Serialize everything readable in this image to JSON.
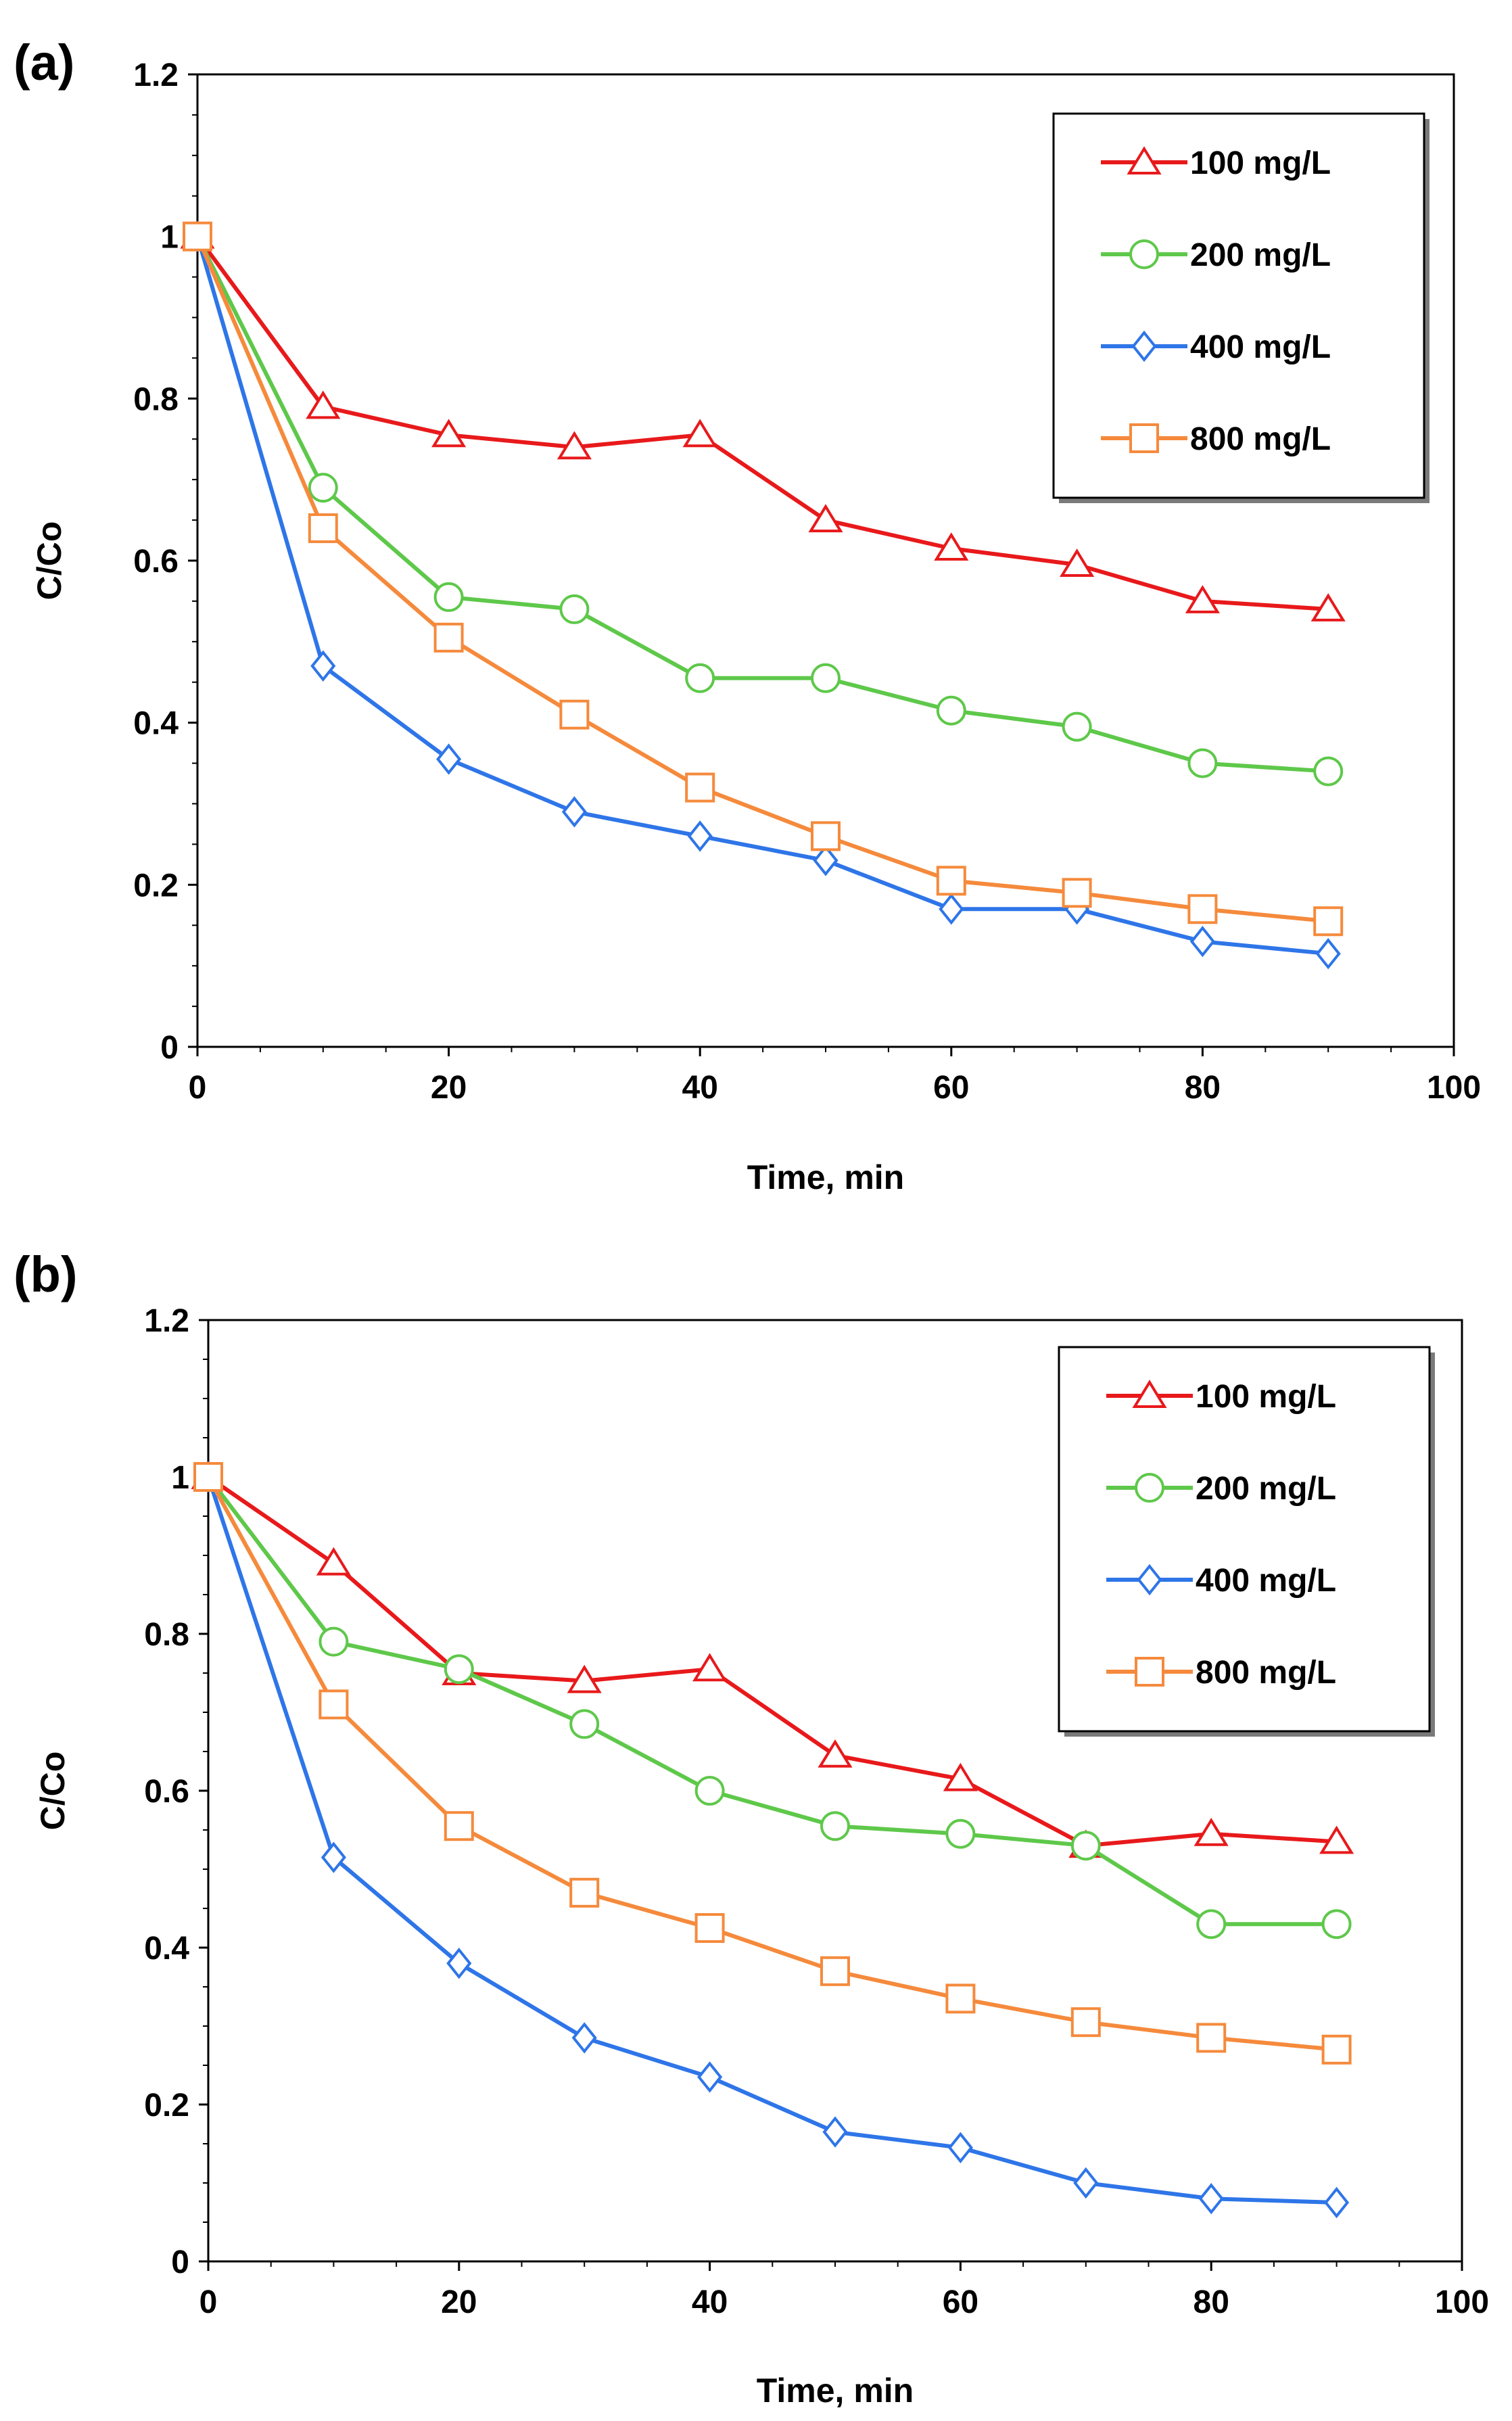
{
  "chart_data": [
    {
      "panel_label": "(a)",
      "type": "line",
      "xlabel": "Time, min",
      "ylabel": "C/Co",
      "xlim": [
        0,
        100
      ],
      "ylim": [
        0,
        1.2
      ],
      "xticks": [
        "0",
        "20",
        "40",
        "60",
        "80",
        "100"
      ],
      "yticks": [
        "0",
        "0.2",
        "0.4",
        "0.6",
        "0.8",
        "1",
        "1.2"
      ],
      "grid": false,
      "legend_position": "top-right",
      "x": [
        0,
        10,
        20,
        30,
        40,
        50,
        60,
        70,
        80,
        90
      ],
      "series": [
        {
          "name": "100 mg/L",
          "color": "#e8191b",
          "marker": "triangle",
          "values": [
            1.0,
            0.79,
            0.755,
            0.74,
            0.755,
            0.65,
            0.615,
            0.595,
            0.55,
            0.54
          ]
        },
        {
          "name": "200 mg/L",
          "color": "#5ec84a",
          "marker": "circle",
          "values": [
            1.0,
            0.69,
            0.555,
            0.54,
            0.455,
            0.455,
            0.415,
            0.395,
            0.35,
            0.34
          ]
        },
        {
          "name": "400 mg/L",
          "color": "#2e75e8",
          "marker": "diamond",
          "values": [
            1.0,
            0.47,
            0.355,
            0.29,
            0.26,
            0.23,
            0.17,
            0.17,
            0.13,
            0.115
          ]
        },
        {
          "name": "800 mg/L",
          "color": "#f58a3c",
          "marker": "square",
          "values": [
            1.0,
            0.64,
            0.505,
            0.41,
            0.32,
            0.26,
            0.205,
            0.19,
            0.17,
            0.155
          ]
        }
      ]
    },
    {
      "panel_label": "(b)",
      "type": "line",
      "xlabel": "Time, min",
      "ylabel": "C/Co",
      "xlim": [
        0,
        100
      ],
      "ylim": [
        0,
        1.2
      ],
      "xticks": [
        "0",
        "20",
        "40",
        "60",
        "80",
        "100"
      ],
      "yticks": [
        "0",
        "0.2",
        "0.4",
        "0.6",
        "0.8",
        "1",
        "1.2"
      ],
      "grid": false,
      "legend_position": "top-right",
      "x": [
        0,
        10,
        20,
        30,
        40,
        50,
        60,
        70,
        80,
        90
      ],
      "series": [
        {
          "name": "100 mg/L",
          "color": "#e8191b",
          "marker": "triangle",
          "values": [
            1.0,
            0.89,
            0.75,
            0.74,
            0.755,
            0.645,
            0.615,
            0.53,
            0.545,
            0.535
          ]
        },
        {
          "name": "200 mg/L",
          "color": "#5ec84a",
          "marker": "circle",
          "values": [
            1.0,
            0.79,
            0.755,
            0.685,
            0.6,
            0.555,
            0.545,
            0.53,
            0.43,
            0.43
          ]
        },
        {
          "name": "400 mg/L",
          "color": "#2e75e8",
          "marker": "diamond",
          "values": [
            1.0,
            0.515,
            0.38,
            0.285,
            0.235,
            0.165,
            0.145,
            0.1,
            0.08,
            0.075
          ]
        },
        {
          "name": "800 mg/L",
          "color": "#f58a3c",
          "marker": "square",
          "values": [
            1.0,
            0.71,
            0.555,
            0.47,
            0.425,
            0.37,
            0.335,
            0.305,
            0.285,
            0.27
          ]
        }
      ]
    }
  ]
}
